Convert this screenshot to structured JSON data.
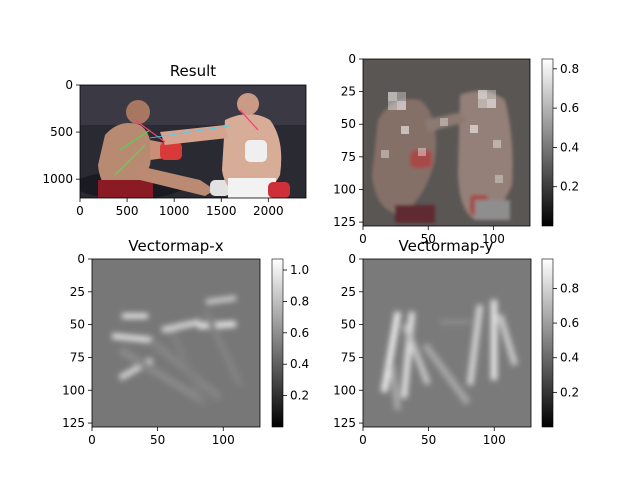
{
  "chart_data": [
    {
      "type": "heatmap",
      "title": "Result",
      "content": "boxing-photo-with-pose-overlay",
      "xlim": [
        0,
        2400
      ],
      "ylim": [
        1200,
        0
      ],
      "xticks": [
        0,
        500,
        1000,
        1500,
        2000
      ],
      "yticks": [
        0,
        500,
        1000
      ],
      "colorbar": null
    },
    {
      "type": "heatmap",
      "title": "",
      "content": "blended-heatmap-over-photo",
      "xlim": [
        0,
        128
      ],
      "ylim": [
        128,
        0
      ],
      "xticks": [
        0,
        50,
        100
      ],
      "yticks": [
        0,
        25,
        50,
        75,
        100,
        125
      ],
      "colorbar": {
        "ticks": [
          0.2,
          0.4,
          0.6,
          0.8
        ],
        "range": [
          0.0,
          0.85
        ],
        "cmap": "gray"
      }
    },
    {
      "type": "heatmap",
      "title": "Vectormap-x",
      "content": "vector-field-x-component",
      "xlim": [
        0,
        128
      ],
      "ylim": [
        128,
        0
      ],
      "xticks": [
        0,
        50,
        100
      ],
      "yticks": [
        0,
        25,
        50,
        75,
        100,
        125
      ],
      "colorbar": {
        "ticks": [
          0.2,
          0.4,
          0.6,
          0.8,
          1.0
        ],
        "range": [
          0.0,
          1.07
        ],
        "cmap": "gray"
      }
    },
    {
      "type": "heatmap",
      "title": "Vectormap-y",
      "content": "vector-field-y-component",
      "xlim": [
        0,
        128
      ],
      "ylim": [
        128,
        0
      ],
      "xticks": [
        0,
        50,
        100
      ],
      "yticks": [
        0,
        25,
        50,
        75,
        100,
        125
      ],
      "colorbar": {
        "ticks": [
          0.2,
          0.4,
          0.6,
          0.8
        ],
        "range": [
          0.0,
          0.97
        ],
        "cmap": "gray"
      }
    }
  ]
}
